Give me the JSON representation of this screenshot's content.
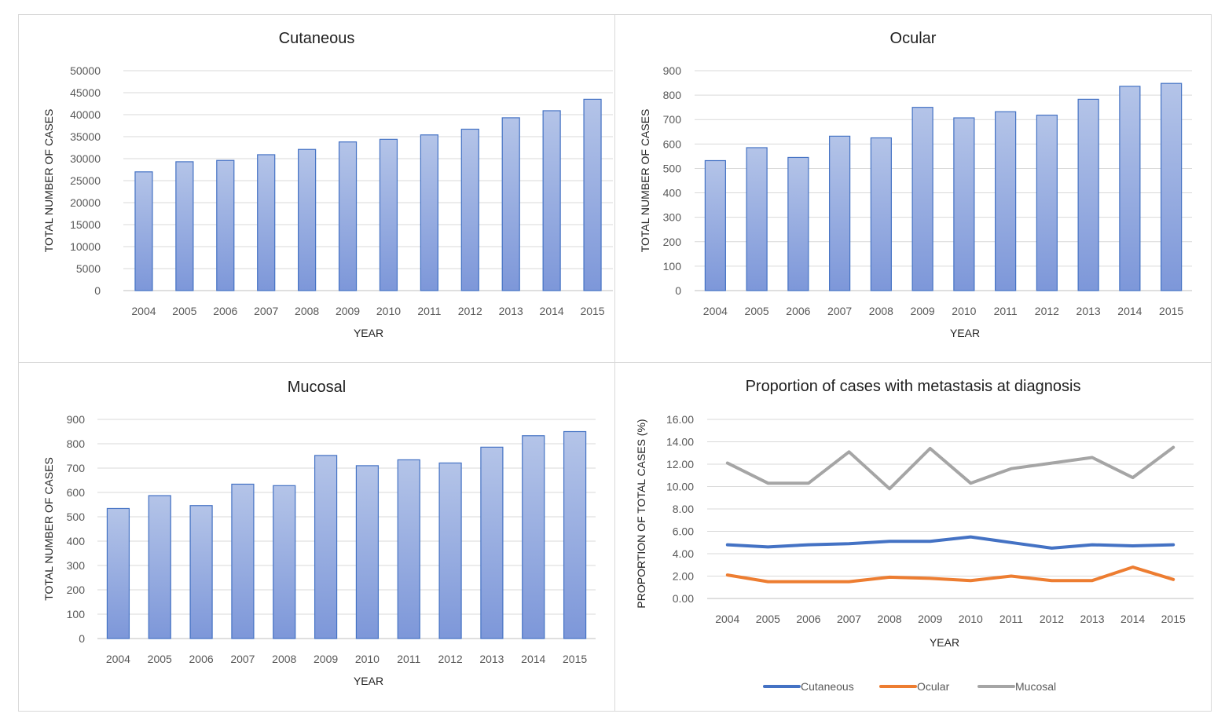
{
  "colors": {
    "bar_top": "#b4c4e8",
    "bar_bottom": "#7d97d9",
    "bar_border": "#4472c4",
    "cutaneous": "#4472c4",
    "ocular": "#ed7d31",
    "mucosal": "#a5a5a5"
  },
  "chart_data": [
    {
      "id": "cutaneous",
      "type": "bar",
      "title": "Cutaneous",
      "xlabel": "YEAR",
      "ylabel": "TOTAL NUMBER OF CASES",
      "categories": [
        "2004",
        "2005",
        "2006",
        "2007",
        "2008",
        "2009",
        "2010",
        "2011",
        "2012",
        "2013",
        "2014",
        "2015"
      ],
      "values": [
        27000,
        29300,
        29600,
        30900,
        32100,
        33800,
        34400,
        35400,
        36700,
        39300,
        40900,
        43500
      ],
      "ylim": [
        0,
        50000
      ],
      "yticks": [
        "0",
        "5000",
        "10000",
        "15000",
        "20000",
        "25000",
        "30000",
        "35000",
        "40000",
        "45000",
        "50000"
      ],
      "grid": true
    },
    {
      "id": "ocular",
      "type": "bar",
      "title": "Ocular",
      "xlabel": "YEAR",
      "ylabel": "TOTAL NUMBER OF CASES",
      "categories": [
        "2004",
        "2005",
        "2006",
        "2007",
        "2008",
        "2009",
        "2010",
        "2011",
        "2012",
        "2013",
        "2014",
        "2015"
      ],
      "values": [
        532,
        585,
        545,
        632,
        625,
        750,
        707,
        732,
        718,
        783,
        836,
        848
      ],
      "ylim": [
        0,
        900
      ],
      "yticks": [
        "0",
        "100",
        "200",
        "300",
        "400",
        "500",
        "600",
        "700",
        "800",
        "900"
      ],
      "grid": true
    },
    {
      "id": "mucosal",
      "type": "bar",
      "title": "Mucosal",
      "xlabel": "YEAR",
      "ylabel": "TOTAL NUMBER OF CASES",
      "categories": [
        "2004",
        "2005",
        "2006",
        "2007",
        "2008",
        "2009",
        "2010",
        "2011",
        "2012",
        "2013",
        "2014",
        "2015"
      ],
      "values": [
        534,
        587,
        546,
        634,
        628,
        752,
        710,
        734,
        721,
        786,
        833,
        850
      ],
      "ylim": [
        0,
        900
      ],
      "yticks": [
        "0",
        "100",
        "200",
        "300",
        "400",
        "500",
        "600",
        "700",
        "800",
        "900"
      ],
      "grid": true
    },
    {
      "id": "metastasis",
      "type": "line",
      "title": "Proportion of cases with metastasis at diagnosis",
      "xlabel": "YEAR",
      "ylabel": "PROPORTION OF TOTAL CASES (%)",
      "categories": [
        "2004",
        "2005",
        "2006",
        "2007",
        "2008",
        "2009",
        "2010",
        "2011",
        "2012",
        "2013",
        "2014",
        "2015"
      ],
      "ylim": [
        0,
        16
      ],
      "yticks": [
        "0.00",
        "2.00",
        "4.00",
        "6.00",
        "8.00",
        "10.00",
        "12.00",
        "14.00",
        "16.00"
      ],
      "grid": true,
      "legend_position": "bottom",
      "series": [
        {
          "name": "Cutaneous",
          "color_key": "cutaneous",
          "values": [
            4.8,
            4.6,
            4.8,
            4.9,
            5.1,
            5.1,
            5.5,
            5.0,
            4.5,
            4.8,
            4.7,
            4.8
          ]
        },
        {
          "name": "Ocular",
          "color_key": "ocular",
          "values": [
            2.1,
            1.5,
            1.5,
            1.5,
            1.9,
            1.8,
            1.6,
            2.0,
            1.6,
            1.6,
            2.8,
            1.7
          ]
        },
        {
          "name": "Mucosal",
          "color_key": "mucosal",
          "values": [
            12.1,
            10.3,
            10.3,
            13.1,
            9.8,
            13.4,
            10.3,
            11.6,
            12.1,
            12.6,
            10.8,
            13.5
          ]
        }
      ]
    }
  ]
}
